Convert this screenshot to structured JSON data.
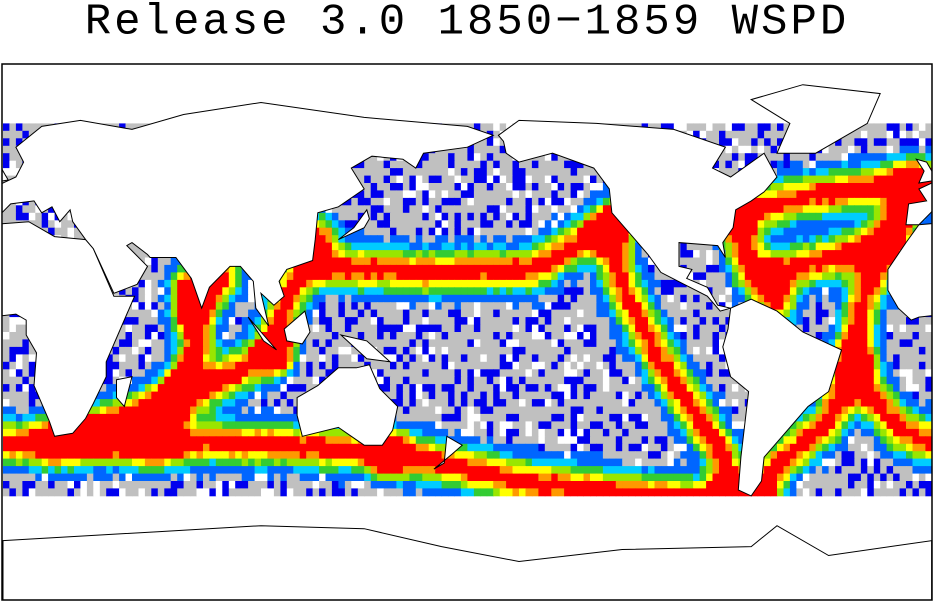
{
  "title": "Release 3.0 1850−1859 WSPD"
}
